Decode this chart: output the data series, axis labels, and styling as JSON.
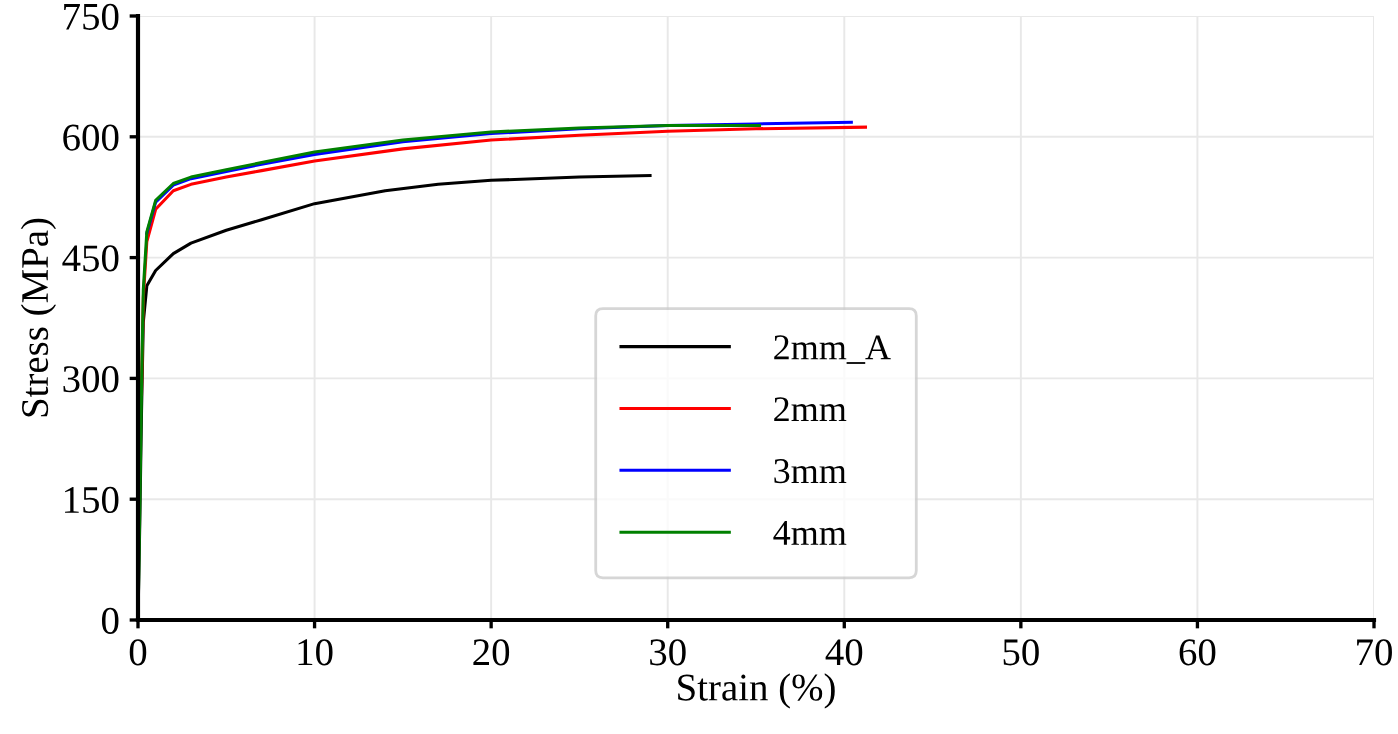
{
  "chart_data": {
    "type": "line",
    "xlabel": "Strain (%)",
    "ylabel": "Stress (MPa)",
    "xlim": [
      0,
      70
    ],
    "ylim": [
      0,
      750
    ],
    "xticks": [
      0,
      10,
      20,
      30,
      40,
      50,
      60,
      70
    ],
    "yticks": [
      0,
      150,
      300,
      450,
      600,
      750
    ],
    "grid": true,
    "legend": "lower center",
    "marker": "none",
    "line_style": "solid",
    "series": [
      {
        "name": "2mm_A",
        "color": "#000000",
        "x": [
          0,
          0.1,
          0.2,
          0.3,
          0.5,
          1,
          2,
          3,
          5,
          7,
          10,
          14,
          17,
          20,
          25,
          29
        ],
        "values": [
          0,
          120,
          260,
          370,
          415,
          434,
          455,
          468,
          484,
          497,
          517,
          533,
          541,
          546,
          550,
          552
        ]
      },
      {
        "name": "2mm",
        "color": "#ff0000",
        "x": [
          0.2,
          0.3,
          0.5,
          1,
          2,
          3,
          5,
          7,
          10,
          15,
          20,
          25,
          30,
          35,
          41.2
        ],
        "values": [
          280,
          400,
          470,
          510,
          533,
          541,
          550,
          558,
          570,
          585,
          596,
          602,
          607,
          610,
          612
        ]
      },
      {
        "name": "3mm",
        "color": "#0000ff",
        "x": [
          0.5,
          1,
          2,
          3,
          5,
          7,
          10,
          15,
          20,
          25,
          30,
          35,
          40.4
        ],
        "values": [
          480,
          519,
          540,
          548,
          557,
          566,
          578,
          594,
          604,
          610,
          614,
          616,
          618
        ]
      },
      {
        "name": "4mm",
        "color": "#008000",
        "x": [
          0,
          0.1,
          0.2,
          0.3,
          0.5,
          1,
          2,
          3,
          5,
          7,
          10,
          15,
          20,
          25,
          30,
          35.2
        ],
        "values": [
          0,
          135,
          290,
          410,
          482,
          521,
          542,
          550,
          559,
          568,
          581,
          596,
          606,
          611,
          614,
          614
        ]
      }
    ]
  }
}
